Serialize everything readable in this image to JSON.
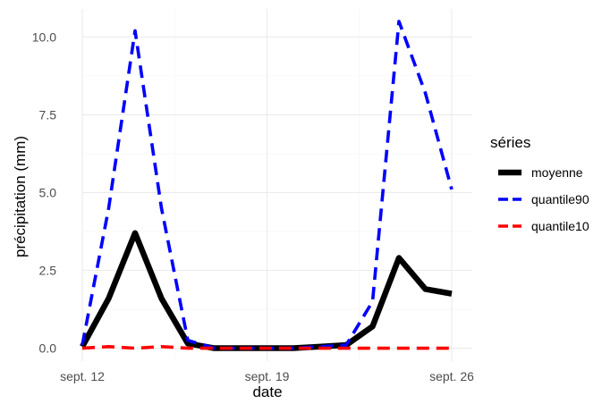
{
  "chart_data": {
    "type": "line",
    "xlabel": "date",
    "ylabel": "précipitation (mm)",
    "x": [
      "2023-09-12",
      "2023-09-13",
      "2023-09-14",
      "2023-09-15",
      "2023-09-16",
      "2023-09-17",
      "2023-09-18",
      "2023-09-19",
      "2023-09-20",
      "2023-09-21",
      "2023-09-22",
      "2023-09-23",
      "2023-09-24",
      "2023-09-25",
      "2023-09-26"
    ],
    "x_ticks": [
      {
        "value": "2023-09-12",
        "label": "sept. 12"
      },
      {
        "value": "2023-09-19",
        "label": "sept. 19"
      },
      {
        "value": "2023-09-26",
        "label": "sept. 26"
      }
    ],
    "xlim": [
      "2023-09-12",
      "2023-09-26"
    ],
    "ylim": [
      -0.3,
      10.9
    ],
    "y_ticks": [
      {
        "value": 0,
        "label": "0.0"
      },
      {
        "value": 2.5,
        "label": "2.5"
      },
      {
        "value": 5,
        "label": "5.0"
      },
      {
        "value": 7.5,
        "label": "7.5"
      },
      {
        "value": 10,
        "label": "10.0"
      }
    ],
    "grid": true,
    "legend": {
      "title": "séries",
      "position": "right"
    },
    "series": [
      {
        "name": "moyenne",
        "color": "#000000",
        "dash": "solid",
        "values": [
          0.05,
          1.6,
          3.7,
          1.6,
          0.15,
          0.0,
          0.0,
          0.0,
          0.0,
          0.05,
          0.1,
          0.7,
          2.9,
          1.9,
          1.75
        ]
      },
      {
        "name": "quantile90",
        "color": "#0000ff",
        "dash": "dashed",
        "values": [
          0.1,
          4.5,
          10.2,
          4.5,
          0.25,
          0.0,
          0.0,
          0.0,
          0.0,
          0.05,
          0.1,
          1.5,
          10.5,
          8.2,
          5.1
        ]
      },
      {
        "name": "quantile10",
        "color": "#ff0000",
        "dash": "dashed",
        "values": [
          0.0,
          0.05,
          0.0,
          0.05,
          0.0,
          0.0,
          0.0,
          0.0,
          0.0,
          0.0,
          0.0,
          0.0,
          0.0,
          0.0,
          0.0
        ]
      }
    ]
  }
}
